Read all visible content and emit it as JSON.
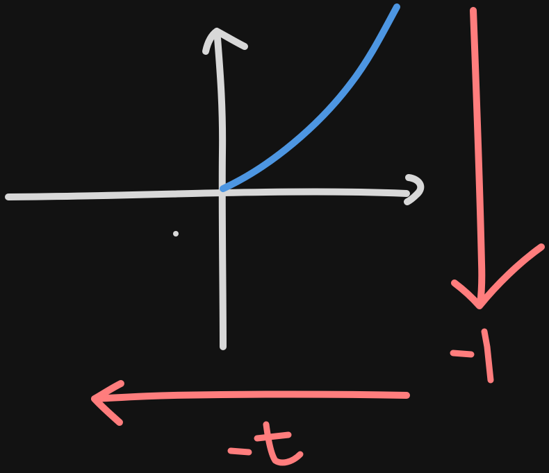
{
  "colors": {
    "background": "#121212",
    "axes": "#d8d8d8",
    "curve": "#4d96e2",
    "annotation": "#ff7d7d"
  },
  "annotations": {
    "vertical_label": "-1",
    "horizontal_label": "-t"
  }
}
